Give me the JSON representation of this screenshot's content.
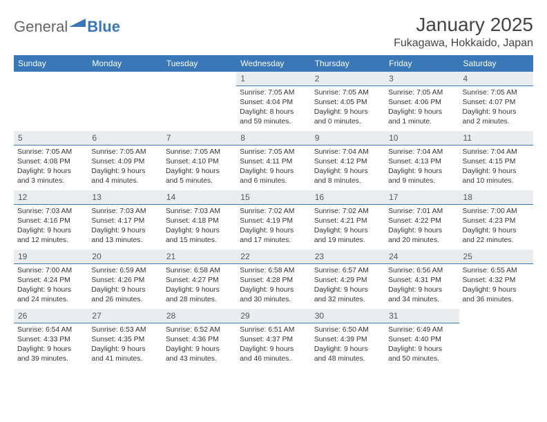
{
  "brand": {
    "part1": "General",
    "part2": "Blue"
  },
  "title": "January 2025",
  "subtitle": "Fukagawa, Hokkaido, Japan",
  "colors": {
    "header_bg": "#3a77b7",
    "header_text": "#ffffff",
    "daynum_bg": "#e9edf0",
    "daynum_border": "#3a77b7",
    "page_bg": "#ffffff",
    "text": "#333333"
  },
  "weekdays": [
    "Sunday",
    "Monday",
    "Tuesday",
    "Wednesday",
    "Thursday",
    "Friday",
    "Saturday"
  ],
  "weeks": [
    [
      null,
      null,
      null,
      {
        "n": "1",
        "sunrise": "7:05 AM",
        "sunset": "4:04 PM",
        "daylight": "8 hours and 59 minutes."
      },
      {
        "n": "2",
        "sunrise": "7:05 AM",
        "sunset": "4:05 PM",
        "daylight": "9 hours and 0 minutes."
      },
      {
        "n": "3",
        "sunrise": "7:05 AM",
        "sunset": "4:06 PM",
        "daylight": "9 hours and 1 minute."
      },
      {
        "n": "4",
        "sunrise": "7:05 AM",
        "sunset": "4:07 PM",
        "daylight": "9 hours and 2 minutes."
      }
    ],
    [
      {
        "n": "5",
        "sunrise": "7:05 AM",
        "sunset": "4:08 PM",
        "daylight": "9 hours and 3 minutes."
      },
      {
        "n": "6",
        "sunrise": "7:05 AM",
        "sunset": "4:09 PM",
        "daylight": "9 hours and 4 minutes."
      },
      {
        "n": "7",
        "sunrise": "7:05 AM",
        "sunset": "4:10 PM",
        "daylight": "9 hours and 5 minutes."
      },
      {
        "n": "8",
        "sunrise": "7:05 AM",
        "sunset": "4:11 PM",
        "daylight": "9 hours and 6 minutes."
      },
      {
        "n": "9",
        "sunrise": "7:04 AM",
        "sunset": "4:12 PM",
        "daylight": "9 hours and 8 minutes."
      },
      {
        "n": "10",
        "sunrise": "7:04 AM",
        "sunset": "4:13 PM",
        "daylight": "9 hours and 9 minutes."
      },
      {
        "n": "11",
        "sunrise": "7:04 AM",
        "sunset": "4:15 PM",
        "daylight": "9 hours and 10 minutes."
      }
    ],
    [
      {
        "n": "12",
        "sunrise": "7:03 AM",
        "sunset": "4:16 PM",
        "daylight": "9 hours and 12 minutes."
      },
      {
        "n": "13",
        "sunrise": "7:03 AM",
        "sunset": "4:17 PM",
        "daylight": "9 hours and 13 minutes."
      },
      {
        "n": "14",
        "sunrise": "7:03 AM",
        "sunset": "4:18 PM",
        "daylight": "9 hours and 15 minutes."
      },
      {
        "n": "15",
        "sunrise": "7:02 AM",
        "sunset": "4:19 PM",
        "daylight": "9 hours and 17 minutes."
      },
      {
        "n": "16",
        "sunrise": "7:02 AM",
        "sunset": "4:21 PM",
        "daylight": "9 hours and 19 minutes."
      },
      {
        "n": "17",
        "sunrise": "7:01 AM",
        "sunset": "4:22 PM",
        "daylight": "9 hours and 20 minutes."
      },
      {
        "n": "18",
        "sunrise": "7:00 AM",
        "sunset": "4:23 PM",
        "daylight": "9 hours and 22 minutes."
      }
    ],
    [
      {
        "n": "19",
        "sunrise": "7:00 AM",
        "sunset": "4:24 PM",
        "daylight": "9 hours and 24 minutes."
      },
      {
        "n": "20",
        "sunrise": "6:59 AM",
        "sunset": "4:26 PM",
        "daylight": "9 hours and 26 minutes."
      },
      {
        "n": "21",
        "sunrise": "6:58 AM",
        "sunset": "4:27 PM",
        "daylight": "9 hours and 28 minutes."
      },
      {
        "n": "22",
        "sunrise": "6:58 AM",
        "sunset": "4:28 PM",
        "daylight": "9 hours and 30 minutes."
      },
      {
        "n": "23",
        "sunrise": "6:57 AM",
        "sunset": "4:29 PM",
        "daylight": "9 hours and 32 minutes."
      },
      {
        "n": "24",
        "sunrise": "6:56 AM",
        "sunset": "4:31 PM",
        "daylight": "9 hours and 34 minutes."
      },
      {
        "n": "25",
        "sunrise": "6:55 AM",
        "sunset": "4:32 PM",
        "daylight": "9 hours and 36 minutes."
      }
    ],
    [
      {
        "n": "26",
        "sunrise": "6:54 AM",
        "sunset": "4:33 PM",
        "daylight": "9 hours and 39 minutes."
      },
      {
        "n": "27",
        "sunrise": "6:53 AM",
        "sunset": "4:35 PM",
        "daylight": "9 hours and 41 minutes."
      },
      {
        "n": "28",
        "sunrise": "6:52 AM",
        "sunset": "4:36 PM",
        "daylight": "9 hours and 43 minutes."
      },
      {
        "n": "29",
        "sunrise": "6:51 AM",
        "sunset": "4:37 PM",
        "daylight": "9 hours and 46 minutes."
      },
      {
        "n": "30",
        "sunrise": "6:50 AM",
        "sunset": "4:39 PM",
        "daylight": "9 hours and 48 minutes."
      },
      {
        "n": "31",
        "sunrise": "6:49 AM",
        "sunset": "4:40 PM",
        "daylight": "9 hours and 50 minutes."
      },
      null
    ]
  ],
  "labels": {
    "sunrise": "Sunrise:",
    "sunset": "Sunset:",
    "daylight": "Daylight:"
  }
}
